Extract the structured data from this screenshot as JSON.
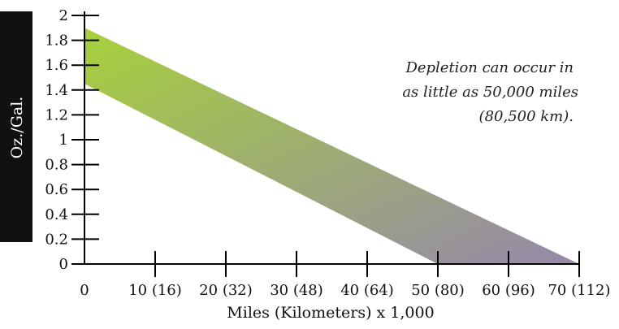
{
  "chart_data": {
    "type": "area",
    "title": "",
    "xlabel": "Miles (Kilometers) x 1,000",
    "ylabel": "Oz./Gal.",
    "x_ticks": [
      "0",
      "10 (16)",
      "20 (32)",
      "30 (48)",
      "40 (64)",
      "50 (80)",
      "60 (96)",
      "70 (112)"
    ],
    "y_ticks": [
      "0",
      "0.2",
      "0.4",
      "0.6",
      "0.8",
      "1",
      "1.2",
      "1.4",
      "1.6",
      "1.8",
      "2"
    ],
    "xlim": [
      0,
      70
    ],
    "ylim": [
      0,
      2
    ],
    "band": {
      "upper": [
        {
          "x": 0,
          "y": 1.9
        },
        {
          "x": 70,
          "y": 0
        }
      ],
      "lower": [
        {
          "x": 0,
          "y": 1.45
        },
        {
          "x": 50,
          "y": 0
        }
      ]
    },
    "annotation": [
      "Depletion can occur in",
      "as little as 50,000 miles",
      "(80,500 km)."
    ],
    "gradient_colors": [
      "#a6d13b",
      "#9688ab"
    ],
    "grid": false
  }
}
